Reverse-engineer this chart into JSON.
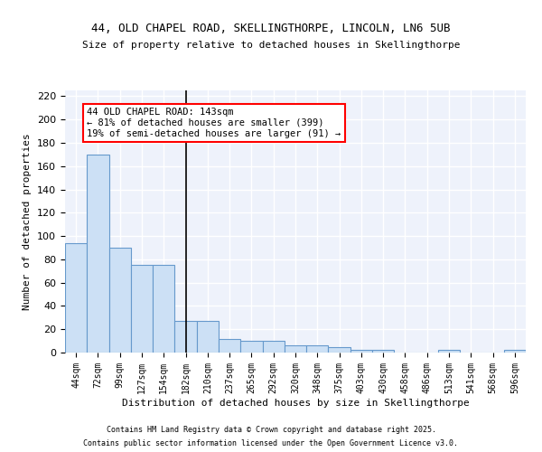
{
  "title_line1": "44, OLD CHAPEL ROAD, SKELLINGTHORPE, LINCOLN, LN6 5UB",
  "title_line2": "Size of property relative to detached houses in Skellingthorpe",
  "xlabel": "Distribution of detached houses by size in Skellingthorpe",
  "ylabel": "Number of detached properties",
  "categories": [
    "44sqm",
    "72sqm",
    "99sqm",
    "127sqm",
    "154sqm",
    "182sqm",
    "210sqm",
    "237sqm",
    "265sqm",
    "292sqm",
    "320sqm",
    "348sqm",
    "375sqm",
    "403sqm",
    "430sqm",
    "458sqm",
    "486sqm",
    "513sqm",
    "541sqm",
    "568sqm",
    "596sqm"
  ],
  "values": [
    94,
    170,
    90,
    75,
    75,
    27,
    27,
    12,
    10,
    10,
    6,
    6,
    5,
    2,
    2,
    0,
    0,
    2,
    0,
    0,
    2
  ],
  "bar_color": "#cce0f5",
  "bar_edge_color": "#6699cc",
  "vline_x": 5.0,
  "vline_color": "black",
  "annotation_text": "44 OLD CHAPEL ROAD: 143sqm\n← 81% of detached houses are smaller (399)\n19% of semi-detached houses are larger (91) →",
  "annotation_box_color": "white",
  "annotation_box_edge_color": "red",
  "annotation_fontsize": 7.5,
  "ylim": [
    0,
    225
  ],
  "yticks": [
    0,
    20,
    40,
    60,
    80,
    100,
    120,
    140,
    160,
    180,
    200,
    220
  ],
  "background_color": "#eef2fb",
  "grid_color": "white",
  "footer_line1": "Contains HM Land Registry data © Crown copyright and database right 2025.",
  "footer_line2": "Contains public sector information licensed under the Open Government Licence v3.0."
}
